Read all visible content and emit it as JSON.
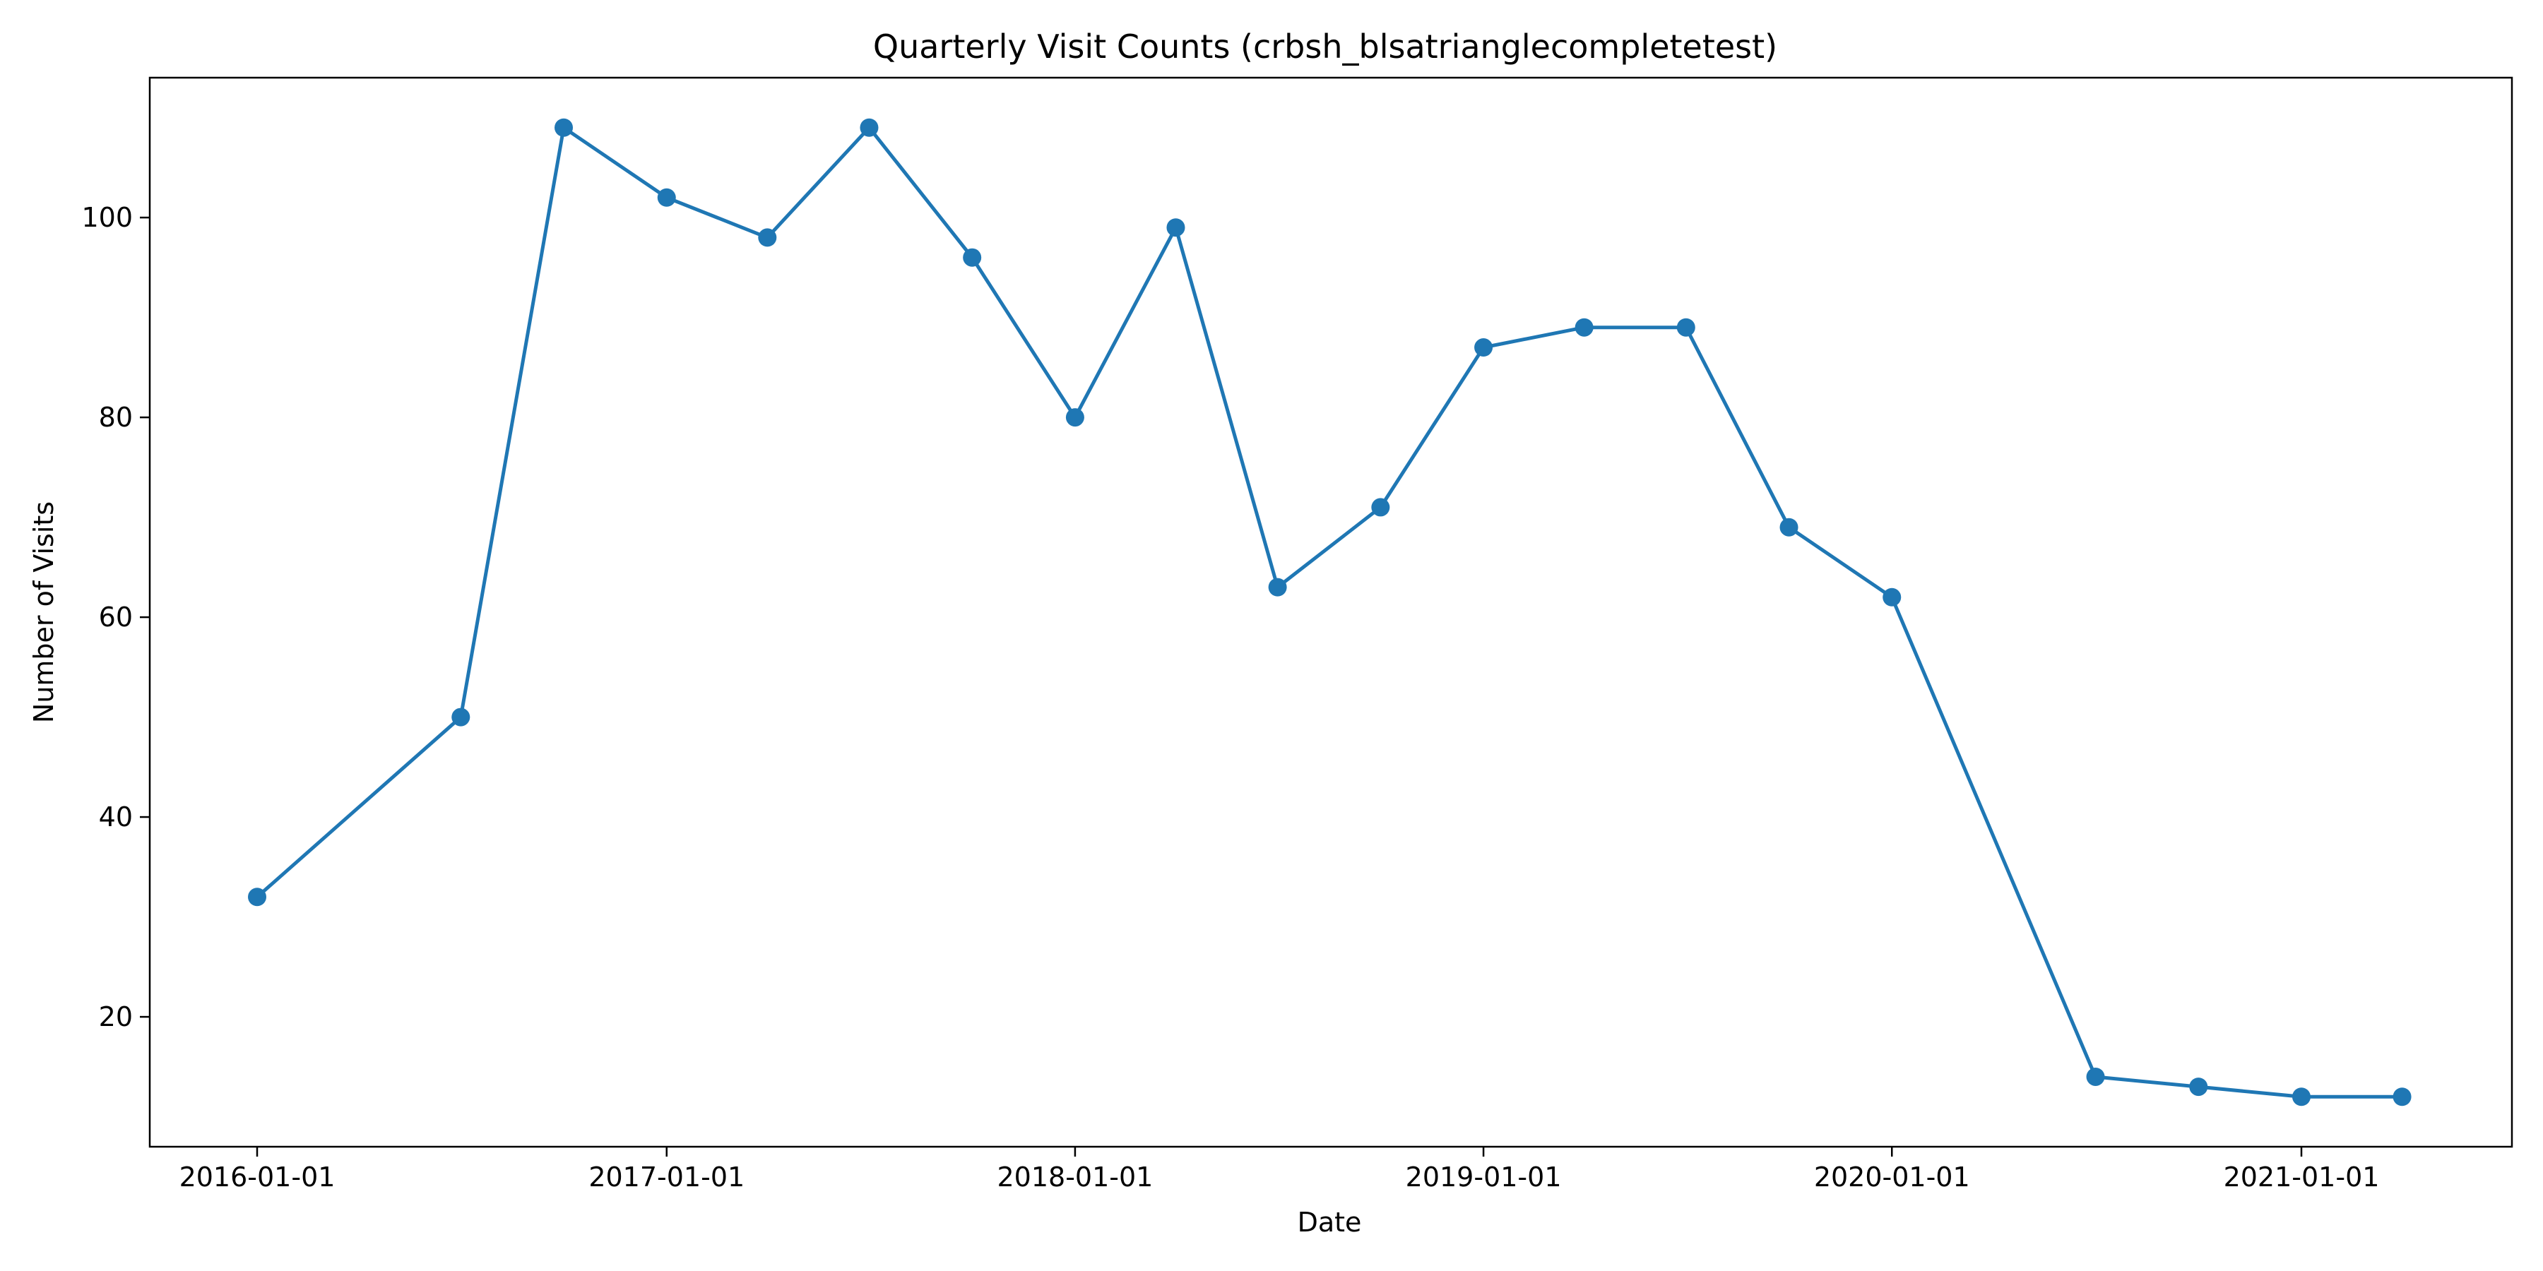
{
  "chart_data": {
    "type": "line",
    "title": "Quarterly Visit Counts (crbsh_blsatrianglecompletetest)",
    "xlabel": "Date",
    "ylabel": "Number of Visits",
    "x_ticks": [
      "2016-01-01",
      "2017-01-01",
      "2018-01-01",
      "2019-01-01",
      "2020-01-01",
      "2021-01-01"
    ],
    "y_ticks": [
      20,
      40,
      60,
      80,
      100
    ],
    "ylim": [
      7,
      114
    ],
    "grid": false,
    "colors": {
      "series": "#1f77b4"
    },
    "series": [
      {
        "x": [
          "2016-01-01",
          "2016-07-01",
          "2016-10-01",
          "2017-01-01",
          "2017-04-01",
          "2017-07-01",
          "2017-10-01",
          "2018-01-01",
          "2018-04-01",
          "2018-07-01",
          "2018-10-01",
          "2019-01-01",
          "2019-04-01",
          "2019-07-01",
          "2019-10-01",
          "2020-01-01",
          "2020-07-01",
          "2020-10-01",
          "2021-01-01",
          "2021-04-01"
        ],
        "values": [
          32,
          50,
          109,
          102,
          98,
          109,
          96,
          80,
          99,
          63,
          71,
          87,
          89,
          89,
          69,
          62,
          14,
          13,
          12,
          12
        ]
      }
    ]
  }
}
